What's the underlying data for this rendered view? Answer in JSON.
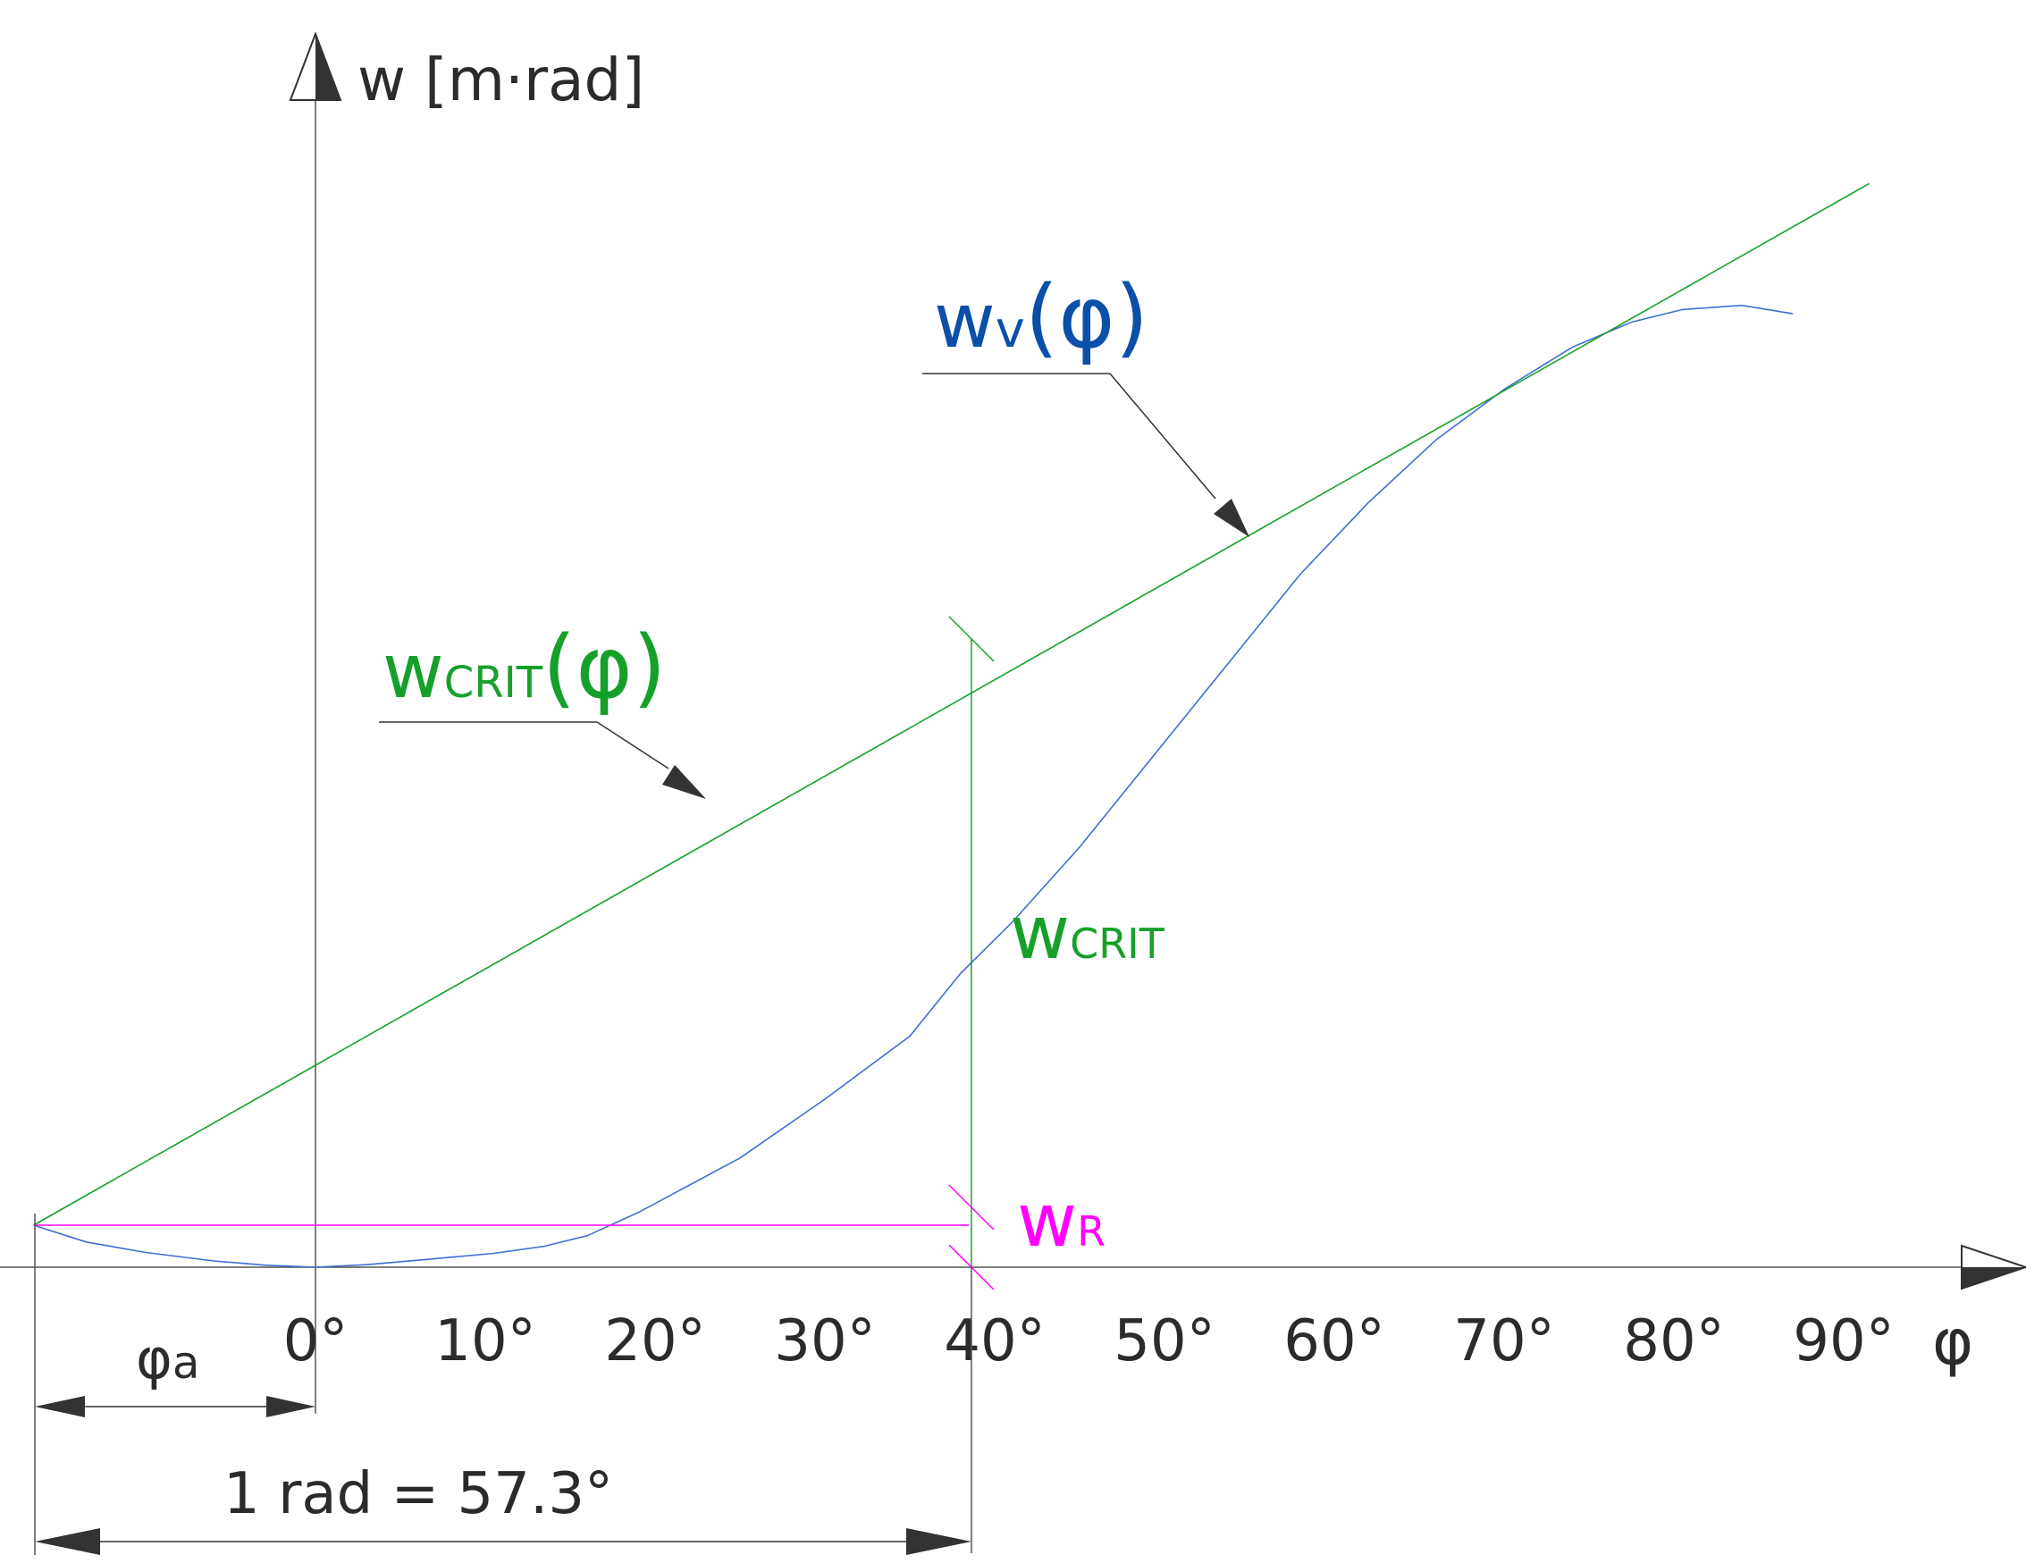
{
  "y_axis_label": "w [m·rad]",
  "x_axis_symbol": "φ",
  "x_ticks": [
    "0°",
    "10°",
    "20°",
    "30°",
    "40°",
    "50°",
    "60°",
    "70°",
    "80°",
    "90°"
  ],
  "labels": {
    "wv_main": "w",
    "wv_sub": "v",
    "wv_arg": "(φ)",
    "wcrit_phi_main": "w",
    "wcrit_phi_sub": "CRIT",
    "wcrit_phi_arg": "(φ)",
    "wcrit_main": "w",
    "wcrit_sub": "CRIT",
    "wr_main": "w",
    "wr_sub": "R",
    "phi_a_main": "φ",
    "phi_a_sub": "a",
    "rad_dimension": "1 rad = 57.3°"
  },
  "colors": {
    "axis": "#555555",
    "wcrit": "#16a02a",
    "wv": "#0a4fa8",
    "wv_line": "#3f6fd0",
    "wr": "#ff00ff",
    "text": "#2b2b2b"
  },
  "chart_data": {
    "type": "line",
    "x_unit": "degrees",
    "x_ticks": [
      0,
      10,
      20,
      30,
      40,
      50,
      60,
      70,
      80,
      90
    ],
    "phi_a_deg": -16.6,
    "one_rad_deg": 57.3,
    "wcrit_eval_deg": 38.3,
    "series": [
      {
        "name": "wv(φ)",
        "x": [
          -16.6,
          -13.5,
          -10,
          -6,
          -3,
          0,
          3,
          7,
          10.5,
          13.5,
          16,
          19,
          25,
          30,
          35,
          38,
          41,
          45,
          50,
          54,
          58,
          62,
          66,
          70,
          74,
          77.5,
          80.5,
          84,
          87
        ],
        "y": [
          0.1,
          0.06,
          0.035,
          0.015,
          0.005,
          0,
          0.006,
          0.02,
          0.033,
          0.05,
          0.075,
          0.13,
          0.26,
          0.4,
          0.55,
          0.7,
          0.82,
          1.0,
          1.25,
          1.45,
          1.65,
          1.82,
          1.97,
          2.09,
          2.19,
          2.25,
          2.28,
          2.29,
          2.27
        ]
      },
      {
        "name": "wcrit(φ)",
        "x": [
          -16.6,
          91.5
        ],
        "y": [
          0.1,
          2.58
        ]
      },
      {
        "name": "wR",
        "x": [
          -16.6,
          38.5
        ],
        "y": [
          0.1,
          0.1
        ]
      }
    ]
  }
}
